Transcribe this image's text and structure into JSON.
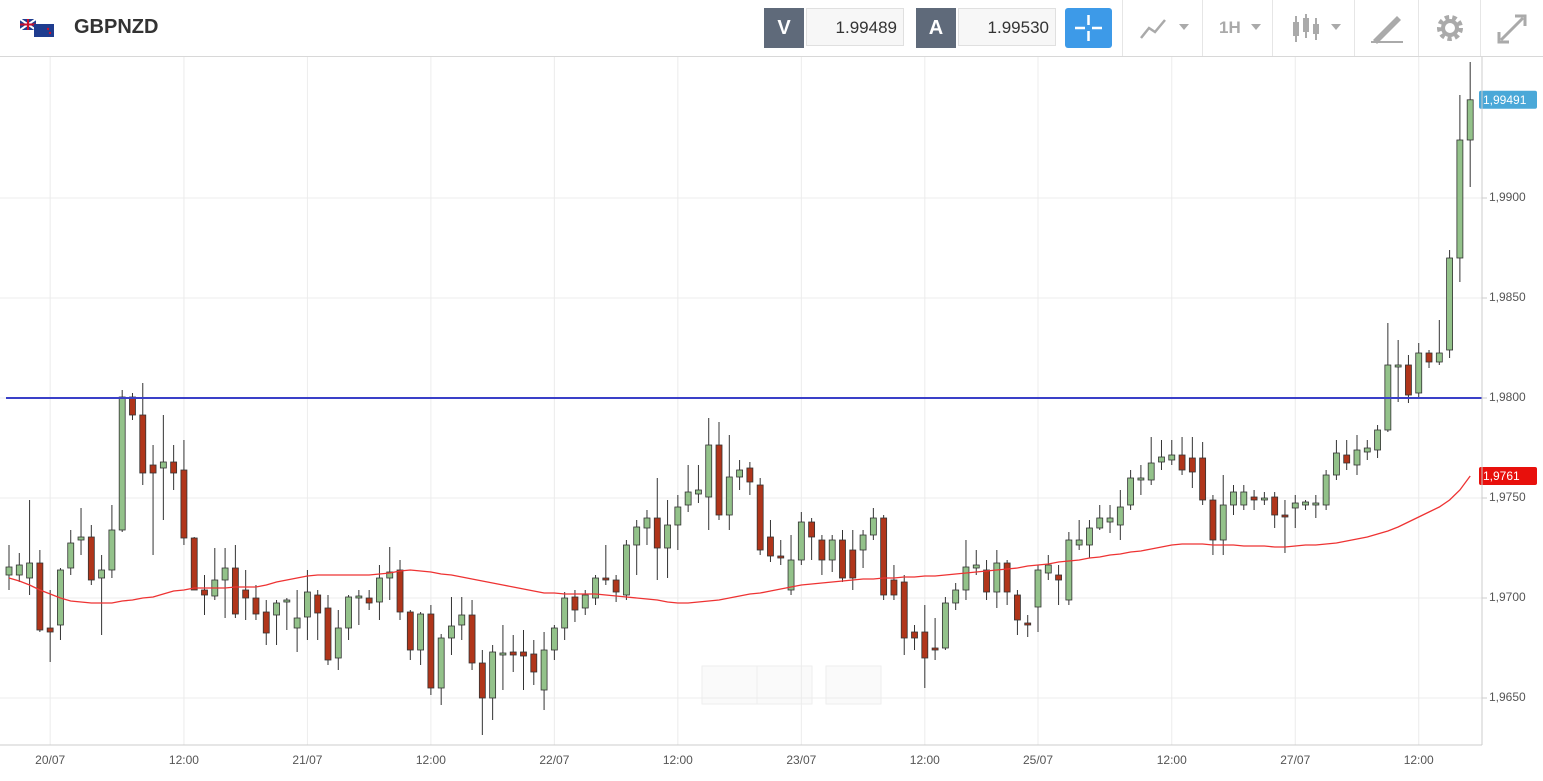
{
  "toolbar": {
    "symbol": "GBPNZD",
    "bid_label": "V",
    "bid": "1.99489",
    "ask_label": "A",
    "ask": "1.99530",
    "timeframe": "1H"
  },
  "chart_data": {
    "type": "candlestick",
    "categories": [
      null,
      null,
      null,
      null,
      "20/07",
      null,
      null,
      null,
      null,
      null,
      null,
      null,
      null,
      null,
      null,
      null,
      null,
      "12:00",
      null,
      null,
      null,
      null,
      null,
      null,
      null,
      null,
      null,
      null,
      null,
      "21/07",
      null,
      null,
      null,
      null,
      null,
      null,
      null,
      null,
      null,
      null,
      null,
      "12:00",
      null,
      null,
      null,
      null,
      null,
      null,
      null,
      null,
      null,
      null,
      null,
      "22/07",
      null,
      null,
      null,
      null,
      null,
      null,
      null,
      null,
      null,
      null,
      null,
      "12:00",
      null,
      null,
      null,
      null,
      null,
      null,
      null,
      null,
      null,
      null,
      null,
      "23/07",
      null,
      null,
      null,
      null,
      null,
      null,
      null,
      null,
      null,
      null,
      null,
      "12:00",
      null,
      null,
      null,
      null,
      null,
      null,
      null,
      null,
      null,
      null,
      "25/07",
      null,
      null,
      null,
      null,
      null,
      null,
      null,
      null,
      null,
      null,
      null,
      null,
      "12:00",
      null,
      null,
      null,
      null,
      null,
      null,
      null,
      null,
      null,
      null,
      null,
      "27/07",
      null,
      null,
      null,
      null,
      null,
      null,
      null,
      null,
      null,
      null,
      null,
      "12:00",
      null,
      null,
      null,
      null,
      null
    ],
    "open": [
      1.97115,
      1.97115,
      1.971,
      1.97175,
      1.9685,
      1.96865,
      1.9715,
      1.9729,
      1.97305,
      1.971,
      1.9714,
      1.9734,
      1.98005,
      1.97915,
      1.97665,
      1.9765,
      1.9768,
      1.9764,
      1.973,
      1.9704,
      1.9701,
      1.9709,
      1.9715,
      1.9704,
      1.97,
      1.9693,
      1.96915,
      1.9698,
      1.9685,
      1.96905,
      1.97015,
      1.9695,
      1.967,
      1.9685,
      1.97,
      1.97,
      1.9698,
      1.971,
      1.9714,
      1.9693,
      1.9674,
      1.9692,
      1.9655,
      1.968,
      1.96865,
      1.96915,
      1.96675,
      1.965,
      1.96715,
      1.9673,
      1.9673,
      1.9672,
      1.9654,
      1.9674,
      1.9685,
      1.97005,
      1.9695,
      1.97,
      1.971,
      1.9709,
      1.97015,
      1.97265,
      1.9735,
      1.974,
      1.9725,
      1.97365,
      1.97465,
      1.9752,
      1.97505,
      1.97765,
      1.97415,
      1.97605,
      1.9765,
      1.97565,
      1.97305,
      1.9721,
      1.9704,
      1.9719,
      1.9738,
      1.9729,
      1.9719,
      1.9729,
      1.9724,
      1.9724,
      1.97315,
      1.974,
      1.9709,
      1.9708,
      1.9683,
      1.9683,
      1.9675,
      1.9675,
      1.96975,
      1.9704,
      1.9715,
      1.9714,
      1.9703,
      1.97175,
      1.97015,
      1.96875,
      1.96955,
      1.97125,
      1.97115,
      1.9699,
      1.97265,
      1.97265,
      1.9735,
      1.9738,
      1.97365,
      1.97465,
      1.9759,
      1.9759,
      1.9768,
      1.9769,
      1.97715,
      1.977,
      1.977,
      1.9749,
      1.9729,
      1.97465,
      1.97465,
      1.97505,
      1.9749,
      1.97505,
      1.97415,
      1.9745,
      1.97465,
      1.97465,
      1.97465,
      1.97615,
      1.97715,
      1.97665,
      1.9773,
      1.9774,
      1.9784,
      1.98155,
      1.98165,
      1.98025,
      1.98225,
      1.9818,
      1.9824,
      1.987,
      1.9929
    ],
    "high": [
      1.97265,
      1.97225,
      1.9749,
      1.9724,
      1.9704,
      1.9715,
      1.9734,
      1.9745,
      1.97365,
      1.97215,
      1.97465,
      1.9804,
      1.98025,
      1.98075,
      1.97765,
      1.97915,
      1.97765,
      1.9779,
      1.97305,
      1.97115,
      1.9725,
      1.9725,
      1.97265,
      1.9714,
      1.97065,
      1.9699,
      1.9699,
      1.97,
      1.9704,
      1.9714,
      1.9704,
      1.97015,
      1.9694,
      1.97015,
      1.9704,
      1.9704,
      1.97165,
      1.97255,
      1.9719,
      1.9694,
      1.9693,
      1.96965,
      1.9682,
      1.97005,
      1.97005,
      1.9699,
      1.9674,
      1.96765,
      1.96865,
      1.96815,
      1.9684,
      1.9679,
      1.9683,
      1.96865,
      1.9703,
      1.9704,
      1.9704,
      1.97115,
      1.97265,
      1.97115,
      1.9729,
      1.9739,
      1.9744,
      1.976,
      1.9749,
      1.97515,
      1.97665,
      1.97665,
      1.979,
      1.9788,
      1.97815,
      1.9769,
      1.9768,
      1.976,
      1.9739,
      1.9729,
      1.97315,
      1.9743,
      1.974,
      1.97315,
      1.97315,
      1.9734,
      1.9734,
      1.9734,
      1.9745,
      1.97415,
      1.97165,
      1.97115,
      1.96865,
      1.96965,
      1.969,
      1.97005,
      1.97075,
      1.9729,
      1.9724,
      1.9719,
      1.9724,
      1.9719,
      1.9704,
      1.96915,
      1.97165,
      1.97215,
      1.97165,
      1.9733,
      1.9739,
      1.9739,
      1.97465,
      1.97465,
      1.9754,
      1.9764,
      1.97665,
      1.97805,
      1.9779,
      1.9779,
      1.97805,
      1.97805,
      1.9778,
      1.97515,
      1.97615,
      1.97565,
      1.97565,
      1.9754,
      1.9753,
      1.9753,
      1.9749,
      1.97515,
      1.9749,
      1.97515,
      1.9764,
      1.9779,
      1.9779,
      1.97815,
      1.9779,
      1.97865,
      1.98375,
      1.9829,
      1.98215,
      1.98275,
      1.9824,
      1.9839,
      1.9874,
      1.99515,
      1.9968
    ],
    "low": [
      1.9704,
      1.9708,
      1.97015,
      1.9683,
      1.9668,
      1.9679,
      1.97115,
      1.97215,
      1.97065,
      1.96815,
      1.971,
      1.9733,
      1.9789,
      1.97565,
      1.97215,
      1.9739,
      1.9754,
      1.97265,
      1.9704,
      1.96915,
      1.9699,
      1.969,
      1.969,
      1.9689,
      1.9689,
      1.96765,
      1.96765,
      1.9684,
      1.9673,
      1.9679,
      1.9679,
      1.96665,
      1.9664,
      1.9679,
      1.96865,
      1.9694,
      1.9689,
      1.9699,
      1.9689,
      1.9669,
      1.96665,
      1.96515,
      1.96465,
      1.96715,
      1.9679,
      1.9664,
      1.96315,
      1.9639,
      1.9654,
      1.9663,
      1.9654,
      1.96565,
      1.9644,
      1.9669,
      1.9679,
      1.9688,
      1.96915,
      1.96965,
      1.97065,
      1.9698,
      1.9699,
      1.97115,
      1.97265,
      1.9709,
      1.971,
      1.9724,
      1.9743,
      1.97475,
      1.9734,
      1.9739,
      1.9734,
      1.9754,
      1.97515,
      1.97215,
      1.9718,
      1.97165,
      1.97015,
      1.97165,
      1.9719,
      1.97115,
      1.9713,
      1.9708,
      1.9704,
      1.9715,
      1.9729,
      1.9699,
      1.9699,
      1.96715,
      1.9674,
      1.9655,
      1.9669,
      1.9674,
      1.9694,
      1.9699,
      1.97115,
      1.9699,
      1.9695,
      1.96965,
      1.96815,
      1.96805,
      1.9683,
      1.9709,
      1.96965,
      1.96965,
      1.9724,
      1.972,
      1.9734,
      1.97325,
      1.9729,
      1.9744,
      1.97515,
      1.97565,
      1.9764,
      1.97665,
      1.97615,
      1.9755,
      1.97465,
      1.97215,
      1.97215,
      1.97415,
      1.9744,
      1.9744,
      1.97465,
      1.9735,
      1.97225,
      1.9735,
      1.9744,
      1.974,
      1.9744,
      1.9759,
      1.9764,
      1.97615,
      1.9769,
      1.977,
      1.9783,
      1.9798,
      1.97975,
      1.98,
      1.9815,
      1.98165,
      1.982,
      1.9858,
      1.99055
    ],
    "close": [
      1.97155,
      1.97165,
      1.97175,
      1.9684,
      1.9683,
      1.9714,
      1.97275,
      1.97305,
      1.9709,
      1.9714,
      1.9734,
      1.98005,
      1.97915,
      1.97625,
      1.97625,
      1.9768,
      1.97625,
      1.973,
      1.9704,
      1.97015,
      1.9709,
      1.9715,
      1.9692,
      1.97,
      1.9692,
      1.96825,
      1.96975,
      1.9699,
      1.969,
      1.9703,
      1.96925,
      1.9669,
      1.9685,
      1.97005,
      1.9701,
      1.96975,
      1.971,
      1.9713,
      1.9693,
      1.9674,
      1.9692,
      1.9655,
      1.968,
      1.9686,
      1.96915,
      1.96675,
      1.965,
      1.9673,
      1.96725,
      1.96715,
      1.9671,
      1.9663,
      1.9674,
      1.9685,
      1.97,
      1.9694,
      1.97015,
      1.971,
      1.9709,
      1.9703,
      1.97265,
      1.97355,
      1.974,
      1.9725,
      1.97365,
      1.97455,
      1.9753,
      1.9754,
      1.97765,
      1.97415,
      1.97605,
      1.9764,
      1.9758,
      1.9724,
      1.9721,
      1.972,
      1.9719,
      1.9738,
      1.97305,
      1.9719,
      1.9729,
      1.971,
      1.971,
      1.97315,
      1.974,
      1.97015,
      1.97015,
      1.968,
      1.968,
      1.967,
      1.9674,
      1.96975,
      1.9704,
      1.97155,
      1.97165,
      1.9703,
      1.97175,
      1.9703,
      1.9689,
      1.96865,
      1.9714,
      1.97165,
      1.9709,
      1.9729,
      1.9729,
      1.9735,
      1.974,
      1.974,
      1.97455,
      1.976,
      1.976,
      1.97675,
      1.97705,
      1.97715,
      1.9764,
      1.9763,
      1.9749,
      1.9729,
      1.97465,
      1.9753,
      1.9753,
      1.9749,
      1.975,
      1.97415,
      1.97405,
      1.97475,
      1.9748,
      1.97475,
      1.97615,
      1.97725,
      1.97675,
      1.9774,
      1.9775,
      1.9784,
      1.98165,
      1.98165,
      1.98015,
      1.98225,
      1.9818,
      1.98225,
      1.987,
      1.9929,
      1.99491
    ],
    "up_color": "#93c28a",
    "down_color": "#b0351a",
    "ma": {
      "color": "#ee3333",
      "values": [
        1.971,
        1.97085,
        1.97065,
        1.9704,
        1.9702,
        1.97,
        1.96985,
        1.9698,
        1.96975,
        1.96975,
        1.96975,
        1.96985,
        1.9699,
        1.97,
        1.97005,
        1.9702,
        1.97035,
        1.9704,
        1.9705,
        1.9705,
        1.9705,
        1.9705,
        1.97055,
        1.97055,
        1.97055,
        1.97065,
        1.9708,
        1.9709,
        1.971,
        1.9711,
        1.97115,
        1.97115,
        1.97115,
        1.97115,
        1.97115,
        1.97115,
        1.9712,
        1.97125,
        1.97135,
        1.9714,
        1.97135,
        1.9713,
        1.9712,
        1.97115,
        1.97105,
        1.97095,
        1.97085,
        1.97075,
        1.97065,
        1.97055,
        1.97045,
        1.97035,
        1.97025,
        1.97025,
        1.9702,
        1.9702,
        1.9702,
        1.9702,
        1.97015,
        1.9701,
        1.97005,
        1.97,
        1.96995,
        1.9699,
        1.9698,
        1.96975,
        1.96975,
        1.9698,
        1.96985,
        1.9699,
        1.97,
        1.9701,
        1.9702,
        1.97025,
        1.97035,
        1.97045,
        1.97055,
        1.97065,
        1.9707,
        1.97075,
        1.9708,
        1.97085,
        1.9709,
        1.97095,
        1.97095,
        1.971,
        1.971,
        1.97105,
        1.97105,
        1.9711,
        1.9711,
        1.97115,
        1.9712,
        1.97125,
        1.9713,
        1.97135,
        1.9714,
        1.97145,
        1.9715,
        1.9716,
        1.97165,
        1.9717,
        1.9718,
        1.97185,
        1.9719,
        1.972,
        1.97205,
        1.97215,
        1.9722,
        1.9723,
        1.97235,
        1.97245,
        1.97255,
        1.97265,
        1.9727,
        1.9727,
        1.9727,
        1.97265,
        1.97265,
        1.97265,
        1.9726,
        1.9726,
        1.9726,
        1.97255,
        1.97255,
        1.9726,
        1.97265,
        1.97265,
        1.9727,
        1.97275,
        1.97285,
        1.97295,
        1.97305,
        1.9732,
        1.97335,
        1.97355,
        1.9738,
        1.97405,
        1.9743,
        1.97455,
        1.9749,
        1.9754,
        1.9761
      ]
    },
    "hline": {
      "value": 1.98,
      "color": "#3a40c8"
    },
    "price_tags": [
      {
        "value": 1.99491,
        "label": "1,99491",
        "color": "#4aa8d8"
      },
      {
        "value": 1.9761,
        "label": "1,9761",
        "color": "#e8100c"
      }
    ],
    "ylim": [
      1.96265,
      1.99705
    ],
    "yticks": [
      {
        "value": 1.965,
        "label": "1,9650"
      },
      {
        "value": 1.97,
        "label": "1,9700"
      },
      {
        "value": 1.975,
        "label": "1,9750"
      },
      {
        "value": 1.98,
        "label": "1,9800"
      },
      {
        "value": 1.985,
        "label": "1,9850"
      },
      {
        "value": 1.99,
        "label": "1,9900"
      }
    ],
    "grid": true
  }
}
